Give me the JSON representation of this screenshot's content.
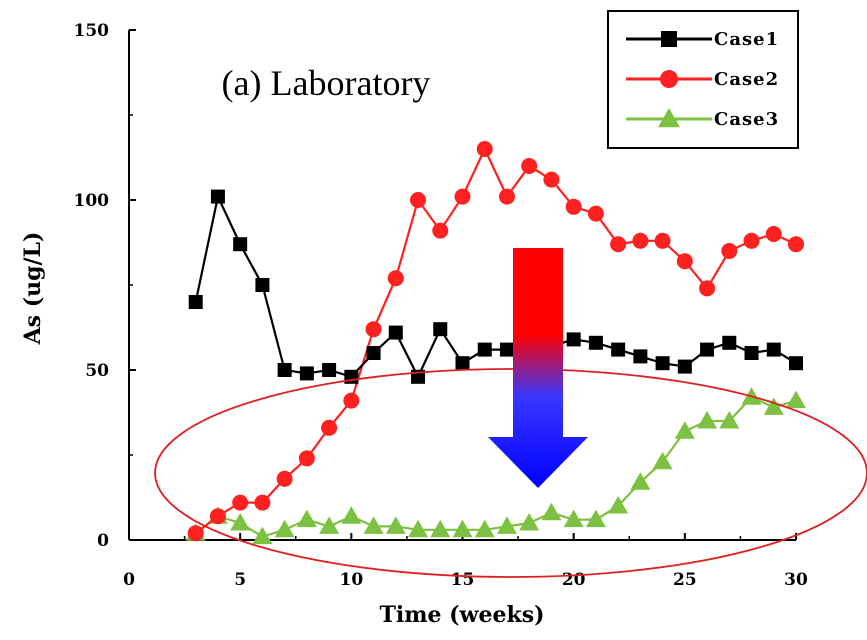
{
  "chart_data": {
    "type": "line",
    "annotation": "(a) Laboratory",
    "xlabel": "Time (weeks)",
    "ylabel": "As (ug/L)",
    "xlim": [
      0,
      30
    ],
    "ylim": [
      0,
      150
    ],
    "xticks": [
      0,
      5,
      10,
      15,
      20,
      25,
      30
    ],
    "yticks": [
      0,
      50,
      100,
      150
    ],
    "legend_position": "top-right",
    "grid": false,
    "series": [
      {
        "name": "Case1",
        "color": "#000000",
        "marker": "square",
        "x": [
          3,
          4,
          5,
          6,
          7,
          8,
          9,
          10,
          11,
          12,
          13,
          14,
          15,
          16,
          17,
          18,
          19,
          20,
          21,
          22,
          23,
          24,
          25,
          26,
          27,
          28,
          29,
          30
        ],
        "y": [
          70,
          101,
          87,
          75,
          50,
          49,
          50,
          48,
          55,
          61,
          48,
          62,
          52,
          56,
          56,
          58,
          57,
          59,
          58,
          56,
          54,
          52,
          51,
          56,
          58,
          55,
          56,
          52
        ]
      },
      {
        "name": "Case2",
        "color": "#ff2020",
        "marker": "circle",
        "x": [
          3,
          4,
          5,
          6,
          7,
          8,
          9,
          10,
          11,
          12,
          13,
          14,
          15,
          16,
          17,
          18,
          19,
          20,
          21,
          22,
          23,
          24,
          25,
          26,
          27,
          28,
          29,
          30
        ],
        "y": [
          2,
          7,
          11,
          11,
          18,
          24,
          33,
          41,
          62,
          77,
          100,
          91,
          101,
          115,
          101,
          110,
          106,
          98,
          96,
          87,
          88,
          88,
          82,
          74,
          85,
          88,
          90,
          87
        ]
      },
      {
        "name": "Case3",
        "color": "#7cc142",
        "marker": "triangle",
        "x": [
          3,
          4,
          5,
          6,
          7,
          8,
          9,
          10,
          11,
          12,
          13,
          14,
          15,
          16,
          17,
          18,
          19,
          20,
          21,
          22,
          23,
          24,
          25,
          26,
          27,
          28,
          29,
          30
        ],
        "y": [
          2,
          7,
          5,
          1,
          3,
          6,
          4,
          7,
          4,
          4,
          3,
          3,
          3,
          3,
          4,
          5,
          8,
          6,
          6,
          10,
          17,
          23,
          32,
          35,
          35,
          42,
          39,
          41
        ]
      }
    ],
    "overlays": {
      "arrow_colors": [
        "#ff0000",
        "#0000ff"
      ],
      "ellipse_color": "#e02020"
    }
  }
}
